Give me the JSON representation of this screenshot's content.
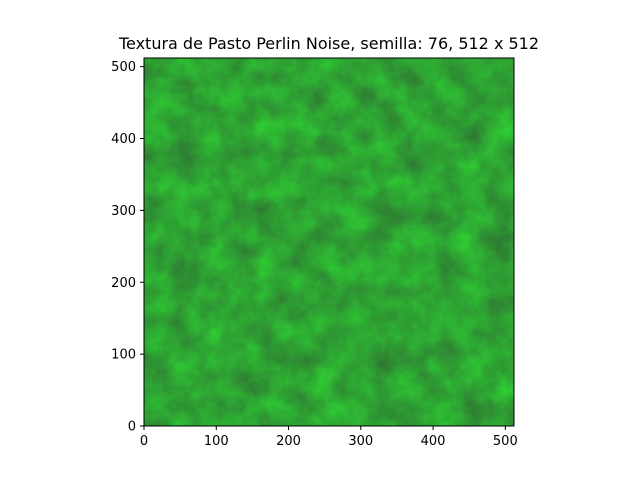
{
  "chart_data": {
    "type": "heatmap",
    "title": "Textura de Pasto Perlin Noise, semilla: 76, 512 x 512",
    "xlabel": "",
    "ylabel": "",
    "x_ticks": [
      0,
      100,
      200,
      300,
      400,
      500
    ],
    "y_ticks": [
      0,
      100,
      200,
      300,
      400,
      500
    ],
    "xlim": [
      0,
      512
    ],
    "ylim": [
      512,
      0
    ],
    "image_size": [
      512,
      512
    ],
    "seed": 76,
    "grid": false,
    "legend": "none",
    "colors": {
      "base": "#3a9a42",
      "dark": "#2d8a36",
      "light": "#57b45e"
    }
  }
}
